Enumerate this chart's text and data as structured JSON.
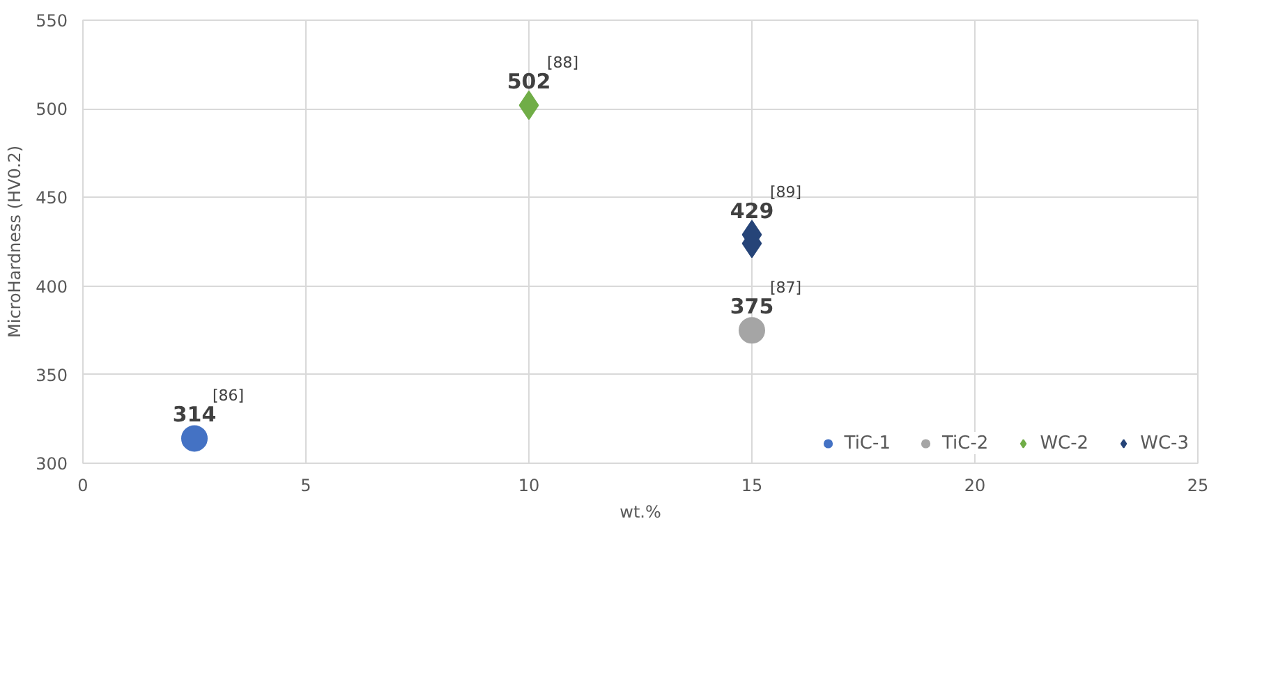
{
  "chart_data": {
    "type": "scatter",
    "xlabel": "wt.%",
    "ylabel": "MicroHardness (HV0.2)",
    "xlim": [
      0,
      25
    ],
    "xticks": [
      0,
      5,
      10,
      15,
      20,
      25
    ],
    "ylim": [
      300,
      550
    ],
    "yticks": [
      300,
      350,
      400,
      450,
      500,
      550
    ],
    "grid": true,
    "legend": "bottom right",
    "series": [
      {
        "name": "TiC-1",
        "color": "#4472c4",
        "marker": "circle",
        "x": [
          2.5
        ],
        "values": [
          314
        ],
        "value_labels": [
          "314"
        ]
      },
      {
        "name": "TiC-2",
        "color": "#a5a5a5",
        "marker": "circle",
        "x": [
          15
        ],
        "values": [
          375
        ],
        "value_labels": [
          "375"
        ]
      },
      {
        "name": "WC-2",
        "color": "#70ad47",
        "marker": "diamond",
        "x": [
          10
        ],
        "values": [
          502
        ],
        "value_labels": [
          "502"
        ]
      },
      {
        "name": "WC-3",
        "color": "#264478",
        "marker": "diamond",
        "x": [
          15,
          15
        ],
        "values": [
          429,
          424
        ],
        "value_labels": [
          "429",
          null
        ]
      }
    ],
    "annotations": [
      {
        "text": "[86]",
        "x": 2.5,
        "y": 314
      },
      {
        "text": "[87]",
        "x": 15,
        "y": 375
      },
      {
        "text": "[88]",
        "x": 10,
        "y": 502
      },
      {
        "text": "[89]",
        "x": 15,
        "y": 429
      }
    ]
  }
}
